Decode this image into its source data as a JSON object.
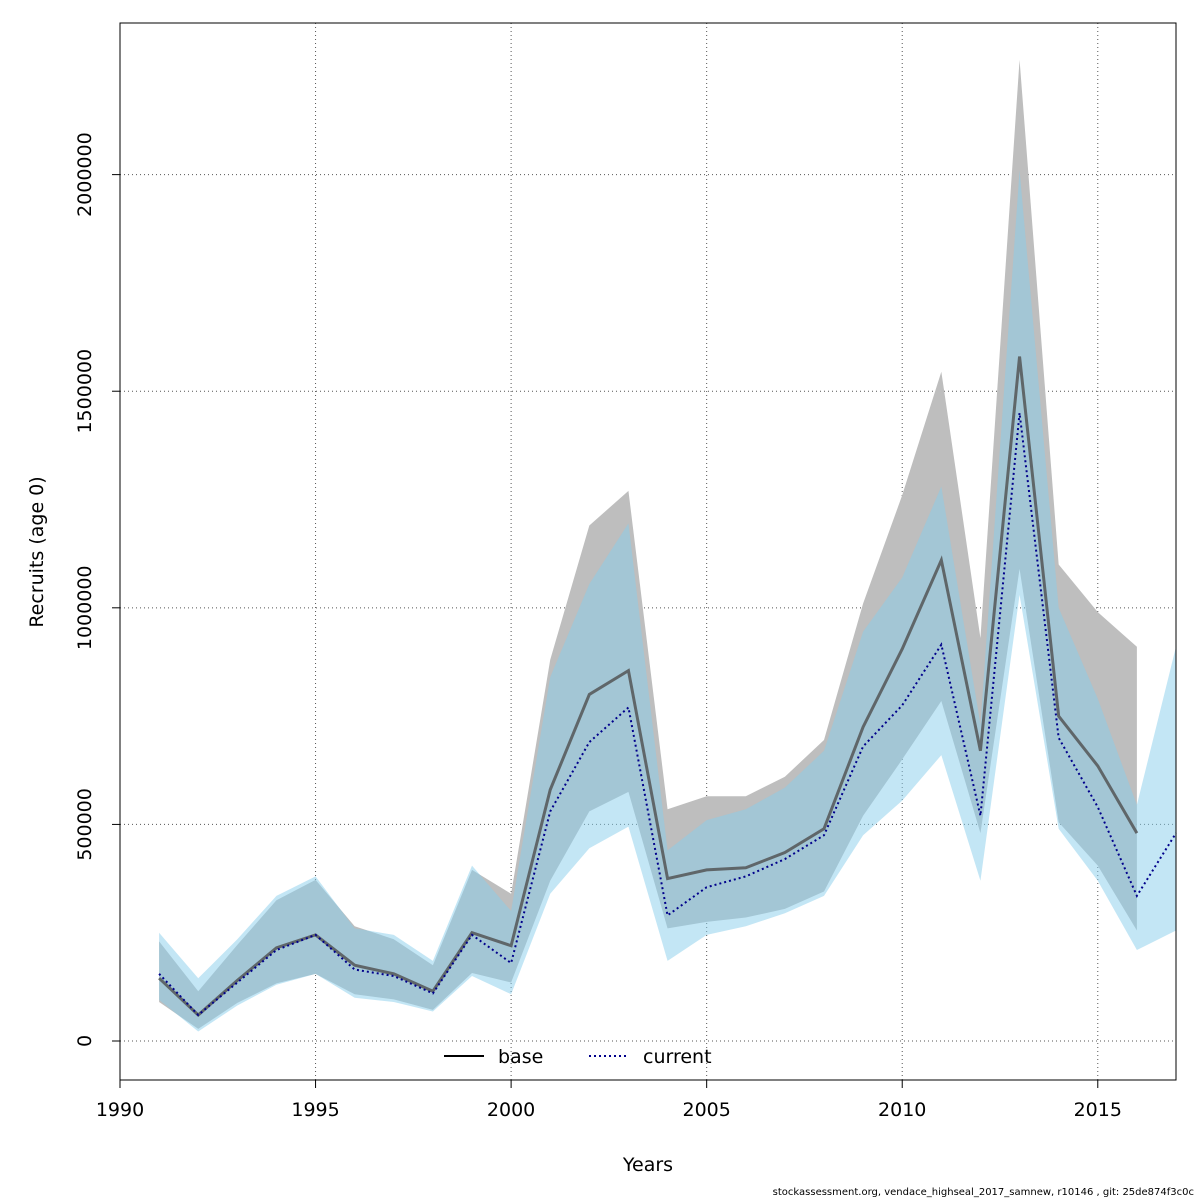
{
  "chart_data": {
    "type": "line",
    "xlabel": "Years",
    "ylabel": "Recruits (age 0)",
    "xlim": [
      1990,
      2017
    ],
    "ylim": [
      -90000,
      2350000
    ],
    "x_ticks": [
      "1990",
      "1995",
      "2000",
      "2005",
      "2010",
      "2015"
    ],
    "y_ticks": [
      "0",
      "500000",
      "1000000",
      "1500000",
      "2000000"
    ],
    "grid": true,
    "legend_position": "bottom-center",
    "colors": {
      "base_band": "#bebebe",
      "current_band": "#87ceeb",
      "base_line": "#4d4d4d",
      "current_line": "#00008b"
    },
    "series": [
      {
        "name": "base",
        "style": "solid",
        "x": [
          1991,
          1992,
          1993,
          1994,
          1995,
          1996,
          1997,
          1998,
          1999,
          2000,
          2001,
          2002,
          2003,
          2004,
          2005,
          2006,
          2007,
          2008,
          2009,
          2010,
          2011,
          2012,
          2013,
          2014,
          2015,
          2016
        ],
        "y": [
          145000,
          60000,
          140000,
          215000,
          245000,
          175000,
          155000,
          115000,
          250000,
          220000,
          580000,
          800000,
          855000,
          375000,
          395000,
          400000,
          435000,
          490000,
          725000,
          905000,
          1110000,
          670000,
          1580000,
          750000,
          635000,
          480000
        ],
        "lower": [
          90000,
          28000,
          88000,
          133000,
          155000,
          108000,
          96000,
          72000,
          157000,
          135000,
          370000,
          530000,
          575000,
          260000,
          275000,
          285000,
          305000,
          345000,
          520000,
          650000,
          785000,
          480000,
          1090000,
          505000,
          405000,
          255000
        ],
        "upper": [
          230000,
          115000,
          222000,
          325000,
          372000,
          265000,
          235000,
          175000,
          395000,
          340000,
          880000,
          1190000,
          1270000,
          535000,
          565000,
          565000,
          610000,
          695000,
          1010000,
          1260000,
          1545000,
          930000,
          2265000,
          1100000,
          990000,
          910000
        ]
      },
      {
        "name": "current",
        "style": "dotted",
        "x": [
          1991,
          1992,
          1993,
          1994,
          1995,
          1996,
          1997,
          1998,
          1999,
          2000,
          2001,
          2002,
          2003,
          2004,
          2005,
          2006,
          2007,
          2008,
          2009,
          2010,
          2011,
          2012,
          2013,
          2014,
          2015,
          2016,
          2017
        ],
        "y": [
          155000,
          60000,
          135000,
          210000,
          245000,
          165000,
          150000,
          110000,
          245000,
          180000,
          530000,
          690000,
          770000,
          290000,
          355000,
          380000,
          420000,
          475000,
          680000,
          775000,
          915000,
          520000,
          1450000,
          700000,
          540000,
          335000,
          480000
        ],
        "lower": [
          95000,
          22000,
          82000,
          130000,
          155000,
          100000,
          90000,
          68000,
          150000,
          108000,
          340000,
          445000,
          495000,
          185000,
          245000,
          265000,
          295000,
          335000,
          475000,
          555000,
          660000,
          370000,
          1030000,
          490000,
          370000,
          210000,
          255000
        ],
        "upper": [
          250000,
          145000,
          235000,
          335000,
          380000,
          260000,
          245000,
          185000,
          405000,
          300000,
          840000,
          1055000,
          1195000,
          440000,
          510000,
          535000,
          585000,
          670000,
          945000,
          1070000,
          1280000,
          730000,
          2010000,
          1000000,
          790000,
          545000,
          910000
        ]
      }
    ],
    "footer": "stockassessment.org, vendace_highseal_2017_samnew, r10146 , git: 25de874f3c0c"
  }
}
